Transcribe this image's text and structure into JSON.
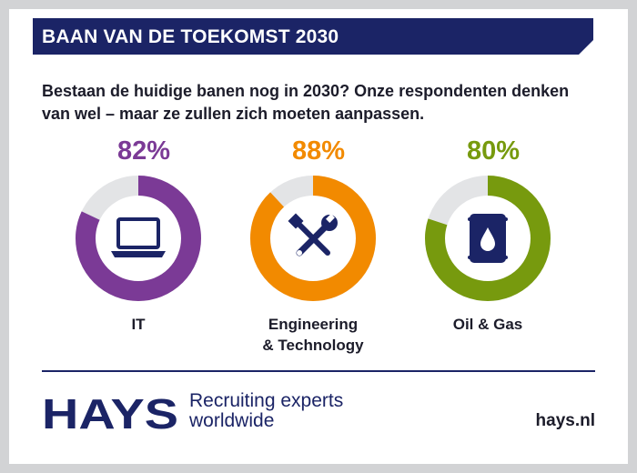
{
  "banner": {
    "title": "BAAN VAN DE TOEKOMST 2030",
    "color": "#1b2466"
  },
  "intro": {
    "line1": "Bestaan de huidige banen nog in 2030? Onze respondenten denken",
    "line2": "van wel – maar ze zullen zich moeten aanpassen."
  },
  "chart_data": {
    "type": "pie",
    "variant": "donut",
    "unit": "%",
    "remainder_color": "#e3e4e6",
    "categories": [
      {
        "label": "IT",
        "value": 82,
        "display": "82%",
        "color": "#7b3a96",
        "icon": "laptop-icon"
      },
      {
        "label_lines": [
          "Engineering",
          "& Technology"
        ],
        "value": 88,
        "display": "88%",
        "color": "#f28a00",
        "icon": "wrench-screwdriver-icon"
      },
      {
        "label": "Oil & Gas",
        "value": 80,
        "display": "80%",
        "color": "#779a0e",
        "icon": "oil-barrel-icon"
      }
    ]
  },
  "footer": {
    "logo": "HAYS",
    "tagline_line1": "Recruiting experts",
    "tagline_line2": "worldwide",
    "website": "hays.nl",
    "brand_color": "#1b2466"
  }
}
